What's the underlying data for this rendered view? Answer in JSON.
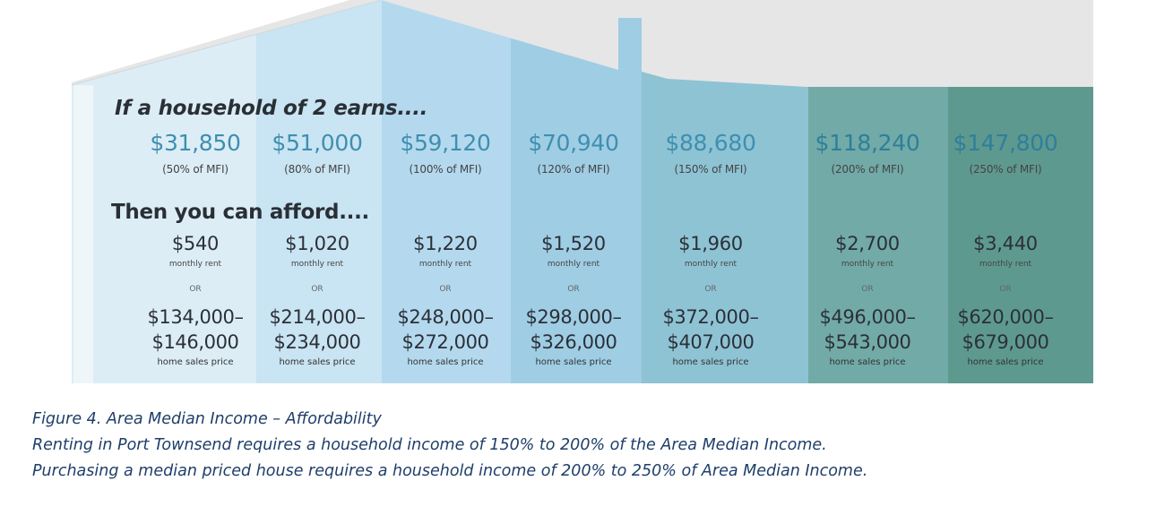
{
  "figure": {
    "income_heading": "If a household of 2 earns....",
    "afford_heading": "Then you can afford....",
    "columns": [
      {
        "income": "$31,850",
        "mfi": "(50% of MFI)",
        "rent": "$540",
        "rent_label": "monthly rent",
        "or": "OR",
        "price_low": "$134,000–",
        "price_high": "$146,000",
        "price_label": "home sales price"
      },
      {
        "income": "$51,000",
        "mfi": "(80% of MFI)",
        "rent": "$1,020",
        "rent_label": "monthly rent",
        "or": "OR",
        "price_low": "$214,000–",
        "price_high": "$234,000",
        "price_label": "home sales price"
      },
      {
        "income": "$59,120",
        "mfi": "(100% of MFI)",
        "rent": "$1,220",
        "rent_label": "monthly rent",
        "or": "OR",
        "price_low": "$248,000–",
        "price_high": "$272,000",
        "price_label": "home sales price"
      },
      {
        "income": "$70,940",
        "mfi": "(120% of MFI)",
        "rent": "$1,520",
        "rent_label": "monthly rent",
        "or": "OR",
        "price_low": "$298,000–",
        "price_high": "$326,000",
        "price_label": "home sales price"
      },
      {
        "income": "$88,680",
        "mfi": "(150% of MFI)",
        "rent": "$1,960",
        "rent_label": "monthly rent",
        "or": "OR",
        "price_low": "$372,000–",
        "price_high": "$407,000",
        "price_label": "home sales price"
      },
      {
        "income": "$118,240",
        "mfi": "(200% of MFI)",
        "rent": "$2,700",
        "rent_label": "monthly rent",
        "or": "OR",
        "price_low": "$496,000–",
        "price_high": "$543,000",
        "price_label": "home sales price"
      },
      {
        "income": "$147,800",
        "mfi": "(250% of MFI)",
        "rent": "$3,440",
        "rent_label": "monthly rent",
        "or": "OR",
        "price_low": "$620,000–",
        "price_high": "$679,000",
        "price_label": "home sales price"
      }
    ],
    "colors": {
      "background_gray": "#e6e6e6",
      "columns": [
        "#dcedf6",
        "#c9e4f2",
        "#b4d9ee",
        "#9fcde4",
        "#8ec3d4",
        "#72aaa7",
        "#5e9990"
      ]
    }
  },
  "caption": {
    "line1": "Figure 4. Area Median Income – Affordability",
    "line2": "Renting in Port Townsend requires a household income of 150% to 200% of the Area Median Income.",
    "line3": "Purchasing a median priced house requires a household income of 200% to 250% of Area Median Income."
  }
}
